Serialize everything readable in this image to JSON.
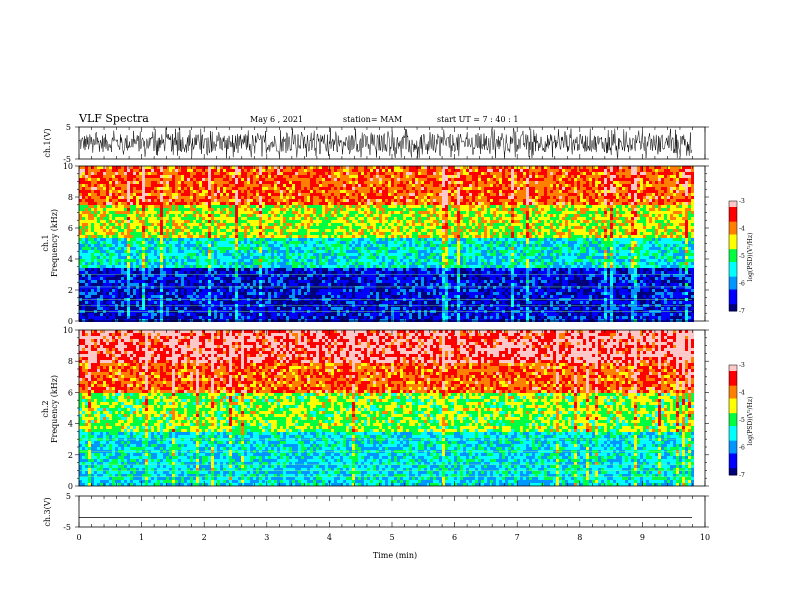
{
  "header": {
    "title": "VLF Spectra",
    "date": "May 6 , 2021",
    "station": "station= MAM",
    "start": "start UT = 7 : 40 : 1"
  },
  "chart_data": [
    {
      "type": "line",
      "panel": "ch1-waveform",
      "ylabel": "ch.1(V)",
      "ylim": [
        -5,
        5
      ],
      "ytick_labels": [
        "5",
        "-5"
      ],
      "xlim": [
        0,
        10
      ],
      "description_values": "dense noisy waveform, amplitude mostly within ±4 V"
    },
    {
      "type": "heatmap",
      "panel": "ch1-spectrogram",
      "ylabel_line1": "ch.1",
      "ylabel_line2": "Frequency (kHz)",
      "ylim": [
        0,
        10
      ],
      "ytick_labels": [
        "0",
        "2",
        "4",
        "6",
        "8",
        "10"
      ],
      "xlim": [
        0,
        9.83
      ],
      "colorbar": {
        "label": "log(PSD)(V²/Hz)",
        "range": [
          -7,
          -3
        ],
        "tick_labels": [
          "-3",
          "-4",
          "-5",
          "-6",
          "-7"
        ]
      },
      "bands_khz": [
        {
          "from": 0,
          "to": 3.5,
          "level": -6.6
        },
        {
          "from": 3.5,
          "to": 5.5,
          "level": -5.5
        },
        {
          "from": 5.5,
          "to": 7.5,
          "level": -4.6
        },
        {
          "from": 7.5,
          "to": 10,
          "level": -3.8
        }
      ]
    },
    {
      "type": "heatmap",
      "panel": "ch2-spectrogram",
      "ylabel_line1": "ch.2",
      "ylabel_line2": "Frequency (kHz)",
      "ylim": [
        0,
        10
      ],
      "ytick_labels": [
        "0",
        "2",
        "4",
        "6",
        "8",
        "10"
      ],
      "xlim": [
        0,
        9.83
      ],
      "colorbar": {
        "label": "log(PSD)(V²/Hz)",
        "range": [
          -7,
          -3
        ],
        "tick_labels": [
          "-3",
          "-4",
          "-5",
          "-6",
          "-7"
        ]
      },
      "bands_khz": [
        {
          "from": 0,
          "to": 3.5,
          "level": -5.6
        },
        {
          "from": 3.5,
          "to": 6,
          "level": -4.8
        },
        {
          "from": 6,
          "to": 8,
          "level": -3.8
        },
        {
          "from": 8,
          "to": 10,
          "level": -3.3
        }
      ]
    },
    {
      "type": "line",
      "panel": "ch3-waveform",
      "ylabel": "ch.3(V)",
      "ylim": [
        -5,
        5
      ],
      "ytick_labels": [
        "5",
        "-5"
      ],
      "xlim": [
        0,
        10
      ],
      "values_constant": -2,
      "xlabel": "Time (min)",
      "xtick_labels": [
        "0",
        "1",
        "2",
        "3",
        "4",
        "5",
        "6",
        "7",
        "8",
        "9",
        "10"
      ]
    }
  ],
  "colors": {
    "colormap": [
      "#00007a",
      "#0000ff",
      "#0096ff",
      "#00ffff",
      "#00ff40",
      "#ffff00",
      "#ff8000",
      "#ff0000",
      "#ffc8c8"
    ],
    "frame": "#000000"
  }
}
